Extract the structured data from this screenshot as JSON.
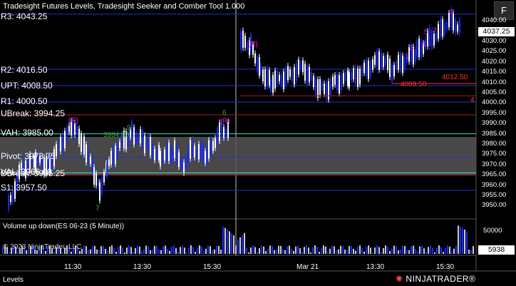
{
  "window": {
    "title": "Tradesight Futures Levels, Tradesight Seeker and Comber Tool 1.000",
    "fullscreen_button": "F"
  },
  "levels": [
    {
      "key": "r3",
      "label": "R3: 4043.25",
      "price": 4043.25,
      "color": "#2233cc"
    },
    {
      "key": "r2",
      "label": "R2: 4016.50",
      "price": 4016.5,
      "color": "#2233cc"
    },
    {
      "key": "upt",
      "label": "UPT: 4008.50",
      "price": 4008.5,
      "color": "#2233cc"
    },
    {
      "key": "r1",
      "label": "R1: 4000.50",
      "price": 4000.5,
      "color": "#2233cc"
    },
    {
      "key": "ubreak",
      "label": "UBreak: 3994.25",
      "price": 3994.25,
      "color": "#b01818"
    },
    {
      "key": "vah",
      "label": "VAH: 3985.00",
      "price": 3985.0,
      "color": "#40e0d0"
    },
    {
      "key": "pivot",
      "label": "Pivot: 3973.75",
      "price": 3973.75,
      "color": "#2233cc"
    },
    {
      "key": "val",
      "label": "VAL: 3966.00",
      "price": 3966.0,
      "color": "#40e0d0"
    },
    {
      "key": "dbreak",
      "label": "DBreak: 3965.25",
      "price": 3965.25,
      "color": "#b01818"
    },
    {
      "key": "s1",
      "label": "S1: 3957.50",
      "price": 3957.5,
      "color": "#2233cc"
    }
  ],
  "price_axis": {
    "ticks": [
      "4040.00",
      "4035.00",
      "4030.00",
      "4025.00",
      "4020.00",
      "4015.00",
      "4010.00",
      "4005.00",
      "4000.00",
      "3995.00",
      "3990.00",
      "3985.00",
      "3980.00",
      "3975.00",
      "3970.00",
      "3965.00",
      "3960.00",
      "3955.00",
      "3950.00"
    ],
    "current": "4037.25",
    "range": [
      3946,
      4046
    ]
  },
  "time_axis": {
    "ticks": [
      "11:30",
      "13:30",
      "15:30",
      "Mar 21",
      "13:30",
      "15:30"
    ]
  },
  "annotations": {
    "tag_r": "(R)",
    "counts": [
      "6",
      "9",
      "7",
      "9",
      "9",
      "2",
      "7",
      "5",
      "4",
      "3",
      "2",
      "1"
    ],
    "red_prices": [
      "4012.50",
      "4009.50",
      "4"
    ],
    "price_labels": [
      "3984.00",
      "3973.75"
    ]
  },
  "volume": {
    "title": "Volume up down(ES 06-23 (5 Minute))",
    "copyright": "© 2023 NinjaTrader, LLC",
    "tick": "50000",
    "current": "5938"
  },
  "footer": {
    "tab": "Levels",
    "logo_text": "NINJATRADER",
    "logo_mark": "®"
  },
  "colors": {
    "up_bar": "#ffffff",
    "down_bar": "#1a2bff",
    "signal_green": "#2fae2f",
    "signal_magenta": "#e020e0",
    "background": "#000000"
  }
}
